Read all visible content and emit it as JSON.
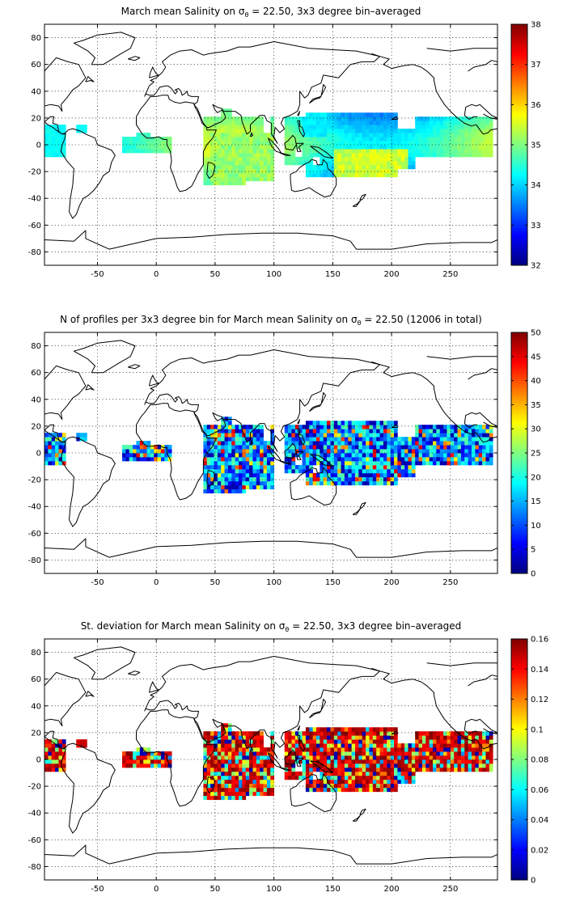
{
  "panels": [
    {
      "id": "mean",
      "title_pre": "March mean Salinity on ",
      "title_sym": "σ",
      "title_sub": "θ",
      "title_post": " = 22.50, 3x3 degree bin–averaged",
      "colorbar": {
        "min": 32,
        "max": 38,
        "ticks": [
          "32",
          "33",
          "34",
          "35",
          "36",
          "37",
          "38"
        ]
      },
      "field_note": "mean salinity",
      "style": "smooth"
    },
    {
      "id": "count",
      "title_pre": "N of profiles per 3x3 degree bin for March mean Salinity on ",
      "title_sym": "σ",
      "title_sub": "θ",
      "title_post": " = 22.50 (12006 in total)",
      "colorbar": {
        "min": 0,
        "max": 50,
        "ticks": [
          "0",
          "5",
          "10",
          "15",
          "20",
          "25",
          "30",
          "35",
          "40",
          "45",
          "50"
        ]
      },
      "field_note": "profile count",
      "style": "noisy"
    },
    {
      "id": "std",
      "title_pre": "St. deviation for March mean Salinity on ",
      "title_sym": "σ",
      "title_sub": "θ",
      "title_post": " = 22.50, 3x3 degree bin–averaged",
      "colorbar": {
        "min": 0,
        "max": 0.16,
        "ticks": [
          "0",
          "0.02",
          "0.04",
          "0.06",
          "0.08",
          "0.1",
          "0.12",
          "0.14",
          "0.16"
        ]
      },
      "field_note": "standard deviation",
      "style": "hot"
    }
  ],
  "axes": {
    "x_ticks": [
      "-50",
      "0",
      "50",
      "100",
      "150",
      "200",
      "250"
    ],
    "y_ticks": [
      "80",
      "60",
      "40",
      "20",
      "0",
      "-20",
      "-40",
      "-60",
      "-80"
    ],
    "xlim": [
      -95,
      290
    ],
    "ylim": [
      -90,
      90
    ],
    "grid": true
  },
  "colormap": "jet"
}
